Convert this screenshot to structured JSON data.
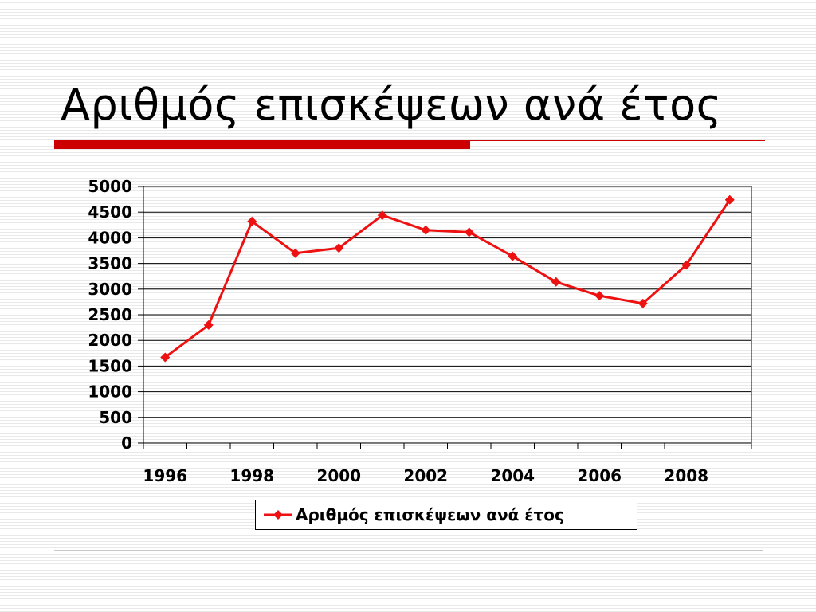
{
  "slide": {
    "title": "Αριθμός επισκέψεων ανά έτος"
  },
  "colors": {
    "accent": "#cc0000",
    "series": "#ee1111",
    "gridline": "#000000"
  },
  "chart_data": {
    "type": "line",
    "title": "",
    "xlabel": "",
    "ylabel": "",
    "x": [
      1996,
      1997,
      1998,
      1999,
      2000,
      2001,
      2002,
      2003,
      2004,
      2005,
      2006,
      2007,
      2008,
      2009
    ],
    "x_tick_labels": [
      "1996",
      "1998",
      "2000",
      "2002",
      "2004",
      "2006",
      "2008"
    ],
    "y_tick_labels": [
      "0",
      "500",
      "1000",
      "1500",
      "2000",
      "2500",
      "3000",
      "3500",
      "4000",
      "4500",
      "5000"
    ],
    "ylim": [
      0,
      5000
    ],
    "grid": true,
    "legend_position": "bottom",
    "series": [
      {
        "name": "Αριθμός επισκέψεων ανά έτος",
        "color": "#ee1111",
        "marker": "diamond",
        "values": [
          1670,
          2300,
          4320,
          3700,
          3800,
          4440,
          4150,
          4110,
          3640,
          3140,
          2870,
          2720,
          3470,
          4740
        ]
      }
    ]
  }
}
